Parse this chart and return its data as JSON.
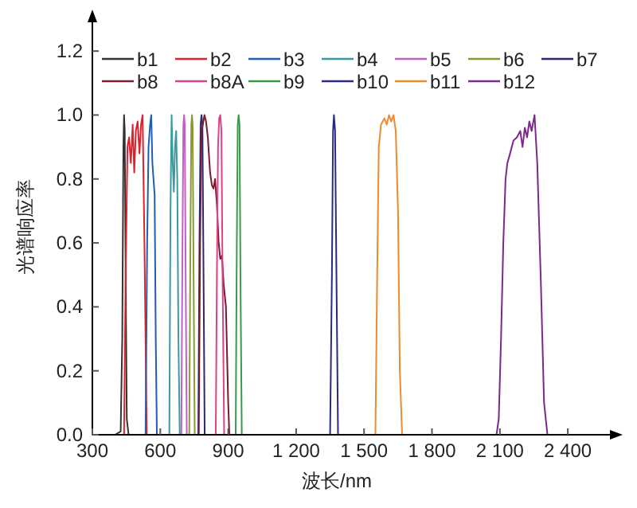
{
  "chart_data": {
    "type": "line",
    "xlabel": "波长/nm",
    "ylabel": "光谱响应率",
    "xlim": [
      300,
      2600
    ],
    "ylim": [
      0,
      1.3
    ],
    "xticks": [
      {
        "value": 300,
        "label": "300"
      },
      {
        "value": 600,
        "label": "600"
      },
      {
        "value": 900,
        "label": "900"
      },
      {
        "value": 1200,
        "label": "1 200"
      },
      {
        "value": 1500,
        "label": "1 500"
      },
      {
        "value": 1800,
        "label": "1 800"
      },
      {
        "value": 2100,
        "label": "2 100"
      },
      {
        "value": 2400,
        "label": "2 400"
      }
    ],
    "yticks": [
      {
        "value": 0,
        "label": "0.0"
      },
      {
        "value": 0.2,
        "label": "0.2"
      },
      {
        "value": 0.4,
        "label": "0.4"
      },
      {
        "value": 0.6,
        "label": "0.6"
      },
      {
        "value": 0.8,
        "label": "0.8"
      },
      {
        "value": 1.0,
        "label": "1.0"
      },
      {
        "value": 1.2,
        "label": "1.2"
      }
    ],
    "grid": false,
    "legend": "top",
    "marker": "none",
    "line_style": "solid",
    "series": [
      {
        "name": "b1",
        "color": "#333333",
        "x": [
          400,
          425,
          432,
          437,
          440,
          443,
          447,
          452,
          460
        ],
        "values": [
          0,
          0.01,
          0.3,
          0.9,
          1.0,
          0.95,
          0.5,
          0.05,
          0
        ]
      },
      {
        "name": "b2",
        "color": "#e0202a",
        "x": [
          440,
          447,
          455,
          462,
          470,
          478,
          485,
          492,
          500,
          508,
          515,
          522,
          530,
          540
        ],
        "values": [
          0,
          0.5,
          0.9,
          0.93,
          0.85,
          0.97,
          0.82,
          0.95,
          0.98,
          0.88,
          0.97,
          1.0,
          0.6,
          0
        ]
      },
      {
        "name": "b3",
        "color": "#1f5fb0",
        "x": [
          535,
          542,
          548,
          555,
          560,
          565,
          570,
          575,
          580,
          585
        ],
        "values": [
          0,
          0.6,
          0.9,
          0.97,
          1.0,
          0.85,
          0.8,
          0.75,
          0.3,
          0
        ]
      },
      {
        "name": "b4",
        "color": "#3a9aa0",
        "x": [
          640,
          645,
          650,
          655,
          660,
          665,
          670,
          675,
          680,
          686
        ],
        "values": [
          0,
          0.7,
          1.0,
          0.85,
          0.76,
          0.9,
          0.95,
          0.8,
          0.3,
          0
        ]
      },
      {
        "name": "b5",
        "color": "#c060c0",
        "x": [
          693,
          698,
          702,
          705,
          708,
          712,
          717
        ],
        "values": [
          0,
          0.6,
          0.97,
          1.0,
          0.97,
          0.5,
          0
        ]
      },
      {
        "name": "b6",
        "color": "#8a9a30",
        "x": [
          728,
          733,
          737,
          740,
          743,
          747,
          752
        ],
        "values": [
          0,
          0.6,
          0.97,
          1.0,
          0.97,
          0.5,
          0
        ]
      },
      {
        "name": "b7",
        "color": "#2a2a70",
        "x": [
          768,
          773,
          778,
          782,
          786,
          791,
          796
        ],
        "values": [
          0,
          0.6,
          0.97,
          1.0,
          0.97,
          0.5,
          0
        ]
      },
      {
        "name": "b8",
        "color": "#7a1a2a",
        "x": [
          770,
          776,
          782,
          788,
          795,
          802,
          810,
          820,
          828,
          835,
          842,
          850,
          858,
          865,
          872,
          880,
          890,
          900,
          905
        ],
        "values": [
          0,
          0.6,
          0.95,
          0.97,
          1.0,
          0.98,
          0.93,
          0.82,
          0.78,
          0.77,
          0.8,
          0.72,
          0.6,
          0.55,
          0.56,
          0.47,
          0.4,
          0.1,
          0
        ]
      },
      {
        "name": "b8A",
        "color": "#e0408a",
        "x": [
          845,
          850,
          855,
          860,
          865,
          870,
          875,
          882
        ],
        "values": [
          0,
          0.5,
          0.9,
          0.99,
          1.0,
          0.95,
          0.5,
          0
        ]
      },
      {
        "name": "b9",
        "color": "#3a9a4a",
        "x": [
          933,
          938,
          942,
          946,
          950,
          954,
          960
        ],
        "values": [
          0,
          0.6,
          0.97,
          1.0,
          0.97,
          0.5,
          0
        ]
      },
      {
        "name": "b10",
        "color": "#2a2a80",
        "x": [
          1350,
          1358,
          1363,
          1367,
          1372,
          1378,
          1385
        ],
        "values": [
          0,
          0.5,
          0.95,
          1.0,
          0.95,
          0.5,
          0
        ]
      },
      {
        "name": "b11",
        "color": "#f08a30",
        "x": [
          1550,
          1558,
          1565,
          1575,
          1590,
          1600,
          1610,
          1620,
          1630,
          1640,
          1650,
          1658,
          1668
        ],
        "values": [
          0,
          0.5,
          0.9,
          0.97,
          0.99,
          0.97,
          1.0,
          0.98,
          1.0,
          0.95,
          0.7,
          0.2,
          0
        ]
      },
      {
        "name": "b12",
        "color": "#7a2a8a",
        "x": [
          300,
          2085,
          2095,
          2105,
          2115,
          2125,
          2133,
          2145,
          2160,
          2175,
          2190,
          2200,
          2210,
          2220,
          2230,
          2240,
          2253,
          2265,
          2280,
          2295,
          2310,
          2600
        ],
        "values": [
          0,
          0,
          0.05,
          0.3,
          0.6,
          0.8,
          0.85,
          0.88,
          0.92,
          0.93,
          0.95,
          0.9,
          0.96,
          0.93,
          0.98,
          0.95,
          1.0,
          0.85,
          0.5,
          0.1,
          0,
          0
        ]
      }
    ]
  }
}
